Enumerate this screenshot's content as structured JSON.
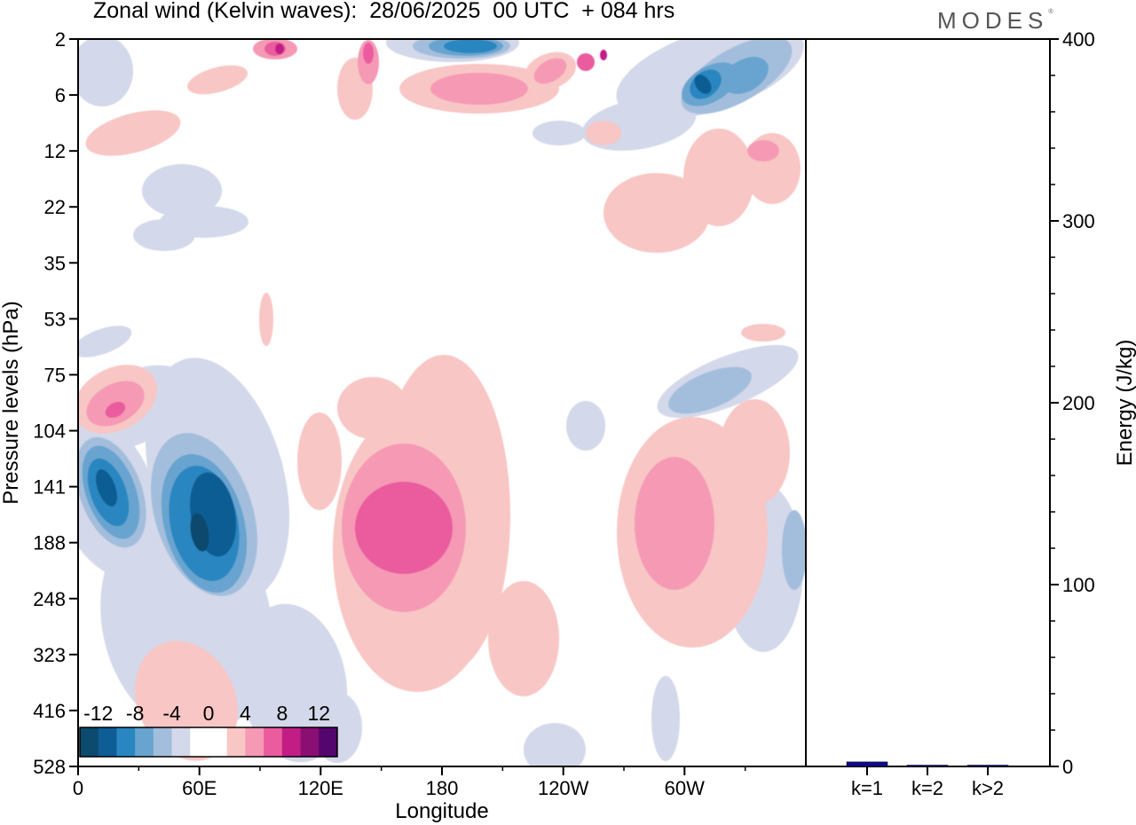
{
  "header": {
    "title": "Zonal wind (Kelvin waves):  28/06/2025  00 UTC  + 084 hrs",
    "brand": "MODES",
    "brand_mark": "®"
  },
  "chart_data": [
    {
      "type": "heatmap",
      "title": "Zonal wind (Kelvin waves):  28/06/2025  00 UTC  + 084 hrs",
      "xlabel": "Longitude",
      "ylabel": "Pressure levels (hPa)",
      "x_ticks": [
        "0",
        "60E",
        "120E",
        "180",
        "120W",
        "60W"
      ],
      "y_ticks": [
        "2",
        "6",
        "12",
        "22",
        "35",
        "53",
        "75",
        "104",
        "141",
        "188",
        "248",
        "323",
        "416",
        "528"
      ],
      "color_levels": [
        -12,
        -8,
        -4,
        0,
        4,
        8,
        12
      ],
      "colorbar_labels": [
        "-12",
        "-8",
        "-4",
        "0",
        "4",
        "8",
        "12"
      ],
      "colorbar_colors": [
        "#0c4a6e",
        "#0f5d95",
        "#2a86c0",
        "#68a4cf",
        "#a3bedc",
        "#d3d8ea",
        "#ffffff",
        "#ffffff",
        "#f8c6c4",
        "#f599b5",
        "#ea5c9e",
        "#c21d85",
        "#8a0f73",
        "#54066e"
      ],
      "features": [
        {
          "sign": "negative",
          "lon_range": [
            "0",
            "30E"
          ],
          "p_range": [
            "104",
            "248"
          ],
          "min": -12
        },
        {
          "sign": "negative",
          "lon_range": [
            "35E",
            "95E"
          ],
          "p_range": [
            "104",
            "323"
          ],
          "min": -12
        },
        {
          "sign": "positive",
          "lon_range": [
            "130E",
            "170W"
          ],
          "p_range": [
            "75",
            "416"
          ],
          "max": 8
        },
        {
          "sign": "positive",
          "lon_range": [
            "95W",
            "30W"
          ],
          "p_range": [
            "104",
            "323"
          ],
          "max": 8
        },
        {
          "sign": "negative",
          "lon_range": [
            "160E",
            "140W"
          ],
          "p_range": [
            "2",
            "6"
          ],
          "min": -12
        },
        {
          "sign": "negative",
          "lon_range": [
            "60W",
            "0"
          ],
          "p_range": [
            "2",
            "12"
          ],
          "min": -12
        },
        {
          "sign": "positive",
          "lon_range": [
            "0",
            "30E"
          ],
          "p_range": [
            "53",
            "104"
          ],
          "max": 8
        }
      ]
    },
    {
      "type": "bar",
      "categories": [
        "k=1",
        "k=2",
        "k>2"
      ],
      "values": [
        2.5,
        0.6,
        0.6
      ],
      "ylabel": "Energy (J/kg)",
      "ylim": [
        0,
        400
      ],
      "y_ticks": [
        0,
        100,
        200,
        300,
        400
      ],
      "bar_color": "#0b0b8c"
    }
  ]
}
